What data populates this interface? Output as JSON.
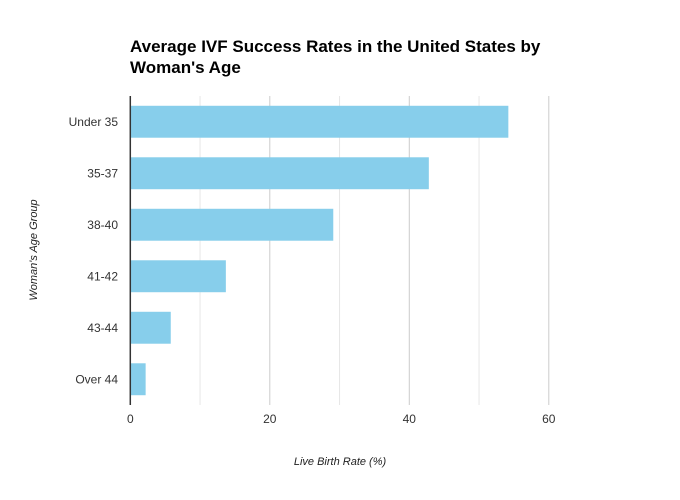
{
  "chart_data": {
    "type": "bar",
    "orientation": "horizontal",
    "title": "Average IVF Success Rates in the United States by Woman's Age",
    "xlabel": "Live Birth Rate (%)",
    "ylabel": "Woman's Age Group",
    "categories": [
      "Under 35",
      "35-37",
      "38-40",
      "41-42",
      "43-44",
      "Over 44"
    ],
    "values": [
      54.2,
      42.8,
      29.1,
      13.7,
      5.8,
      2.2
    ],
    "xlim": [
      0,
      70
    ],
    "xticks": [
      0,
      20,
      40,
      60
    ],
    "grid": true,
    "legend": "none",
    "bar_color": "#87CEEB"
  }
}
